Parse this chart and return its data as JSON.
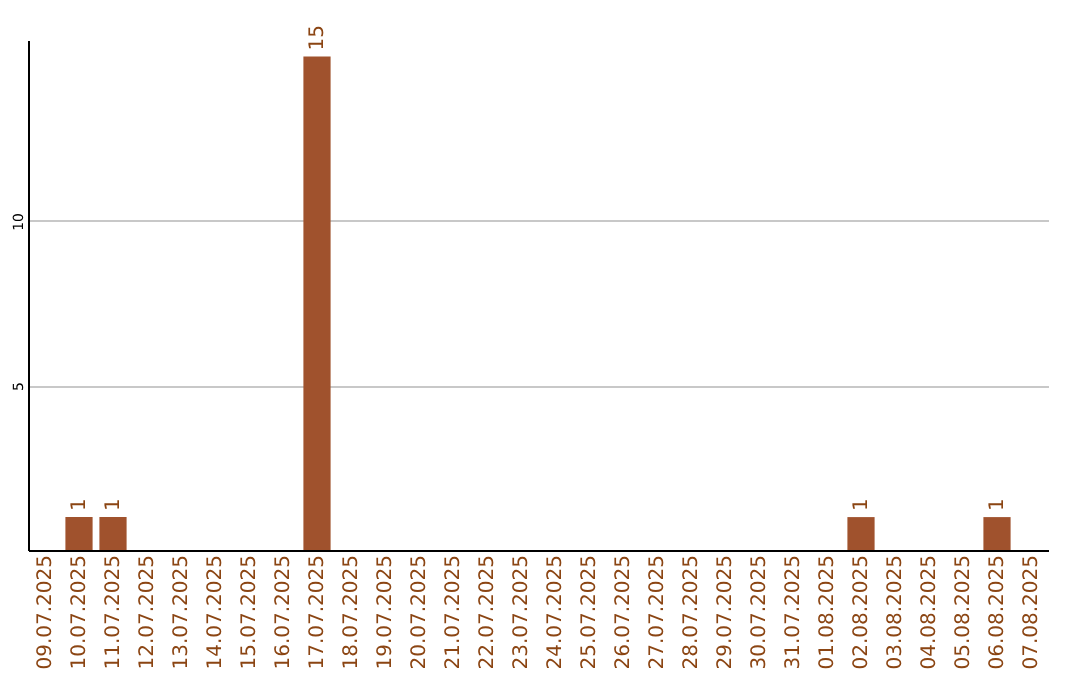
{
  "chart_data": {
    "type": "bar",
    "categories": [
      "09.07.2025",
      "10.07.2025",
      "11.07.2025",
      "12.07.2025",
      "13.07.2025",
      "14.07.2025",
      "15.07.2025",
      "16.07.2025",
      "17.07.2025",
      "18.07.2025",
      "19.07.2025",
      "20.07.2025",
      "21.07.2025",
      "22.07.2025",
      "23.07.2025",
      "24.07.2025",
      "25.07.2025",
      "26.07.2025",
      "27.07.2025",
      "28.07.2025",
      "29.07.2025",
      "30.07.2025",
      "31.07.2025",
      "01.08.2025",
      "02.08.2025",
      "03.08.2025",
      "04.08.2025",
      "05.08.2025",
      "06.08.2025",
      "07.08.2025"
    ],
    "values": [
      0,
      1,
      1,
      0,
      0,
      0,
      0,
      0,
      15,
      0,
      0,
      0,
      0,
      0,
      0,
      0,
      0,
      0,
      0,
      0,
      0,
      0,
      0,
      0,
      1,
      0,
      0,
      0,
      1,
      0
    ],
    "value_labels": [
      null,
      "1",
      "1",
      null,
      null,
      null,
      null,
      null,
      "15",
      null,
      null,
      null,
      null,
      null,
      null,
      null,
      null,
      null,
      null,
      null,
      null,
      null,
      null,
      null,
      "1",
      null,
      null,
      null,
      "1",
      null
    ],
    "color": "#a0522d",
    "ylim": [
      0,
      15.5
    ],
    "yticks": [
      5,
      10
    ],
    "grid": "y"
  }
}
